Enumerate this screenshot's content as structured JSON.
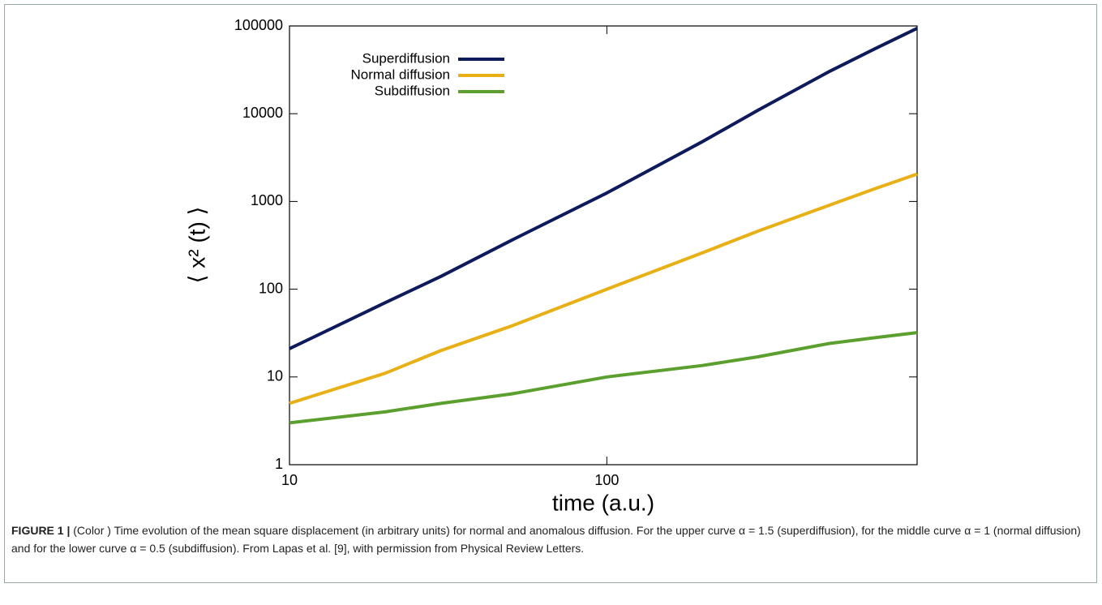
{
  "chart_data": {
    "type": "line",
    "xlabel": "time (a.u.)",
    "ylabel": "⟨ x² (t) ⟩",
    "x": [
      10,
      20,
      30,
      50,
      100,
      200,
      300,
      500,
      700,
      950
    ],
    "series": [
      {
        "name": "Superdiffusion",
        "color": "#0d1a5c",
        "values": [
          21,
          70,
          140,
          360,
          1250,
          4800,
          11000,
          30000,
          55000,
          94000
        ]
      },
      {
        "name": "Normal diffusion",
        "color": "#e8b015",
        "values": [
          5,
          11,
          20,
          38,
          100,
          260,
          460,
          900,
          1400,
          2050
        ]
      },
      {
        "name": "Subdiffusion",
        "color": "#5ba02e",
        "values": [
          3,
          4,
          5,
          6.4,
          10,
          13.5,
          17,
          24,
          28,
          32
        ]
      }
    ],
    "xlim": [
      10,
      950
    ],
    "xticks": [
      10,
      100
    ],
    "ylim": [
      1,
      100000
    ],
    "yticks": [
      1,
      10,
      100,
      1000,
      10000,
      100000
    ],
    "xscale": "log",
    "yscale": "log",
    "legend": "upper left"
  },
  "caption": {
    "label": "FIGURE 1 |",
    "text": "(Color ) Time evolution of the mean square displacement (in arbitrary units) for normal and anomalous diffusion. For the upper curve α = 1.5 (superdiffusion), for the middle curve α = 1 (normal diffusion) and for the lower curve α = 0.5 (subdiffusion). From Lapas et al. [9], with permission from Physical Review Letters."
  }
}
